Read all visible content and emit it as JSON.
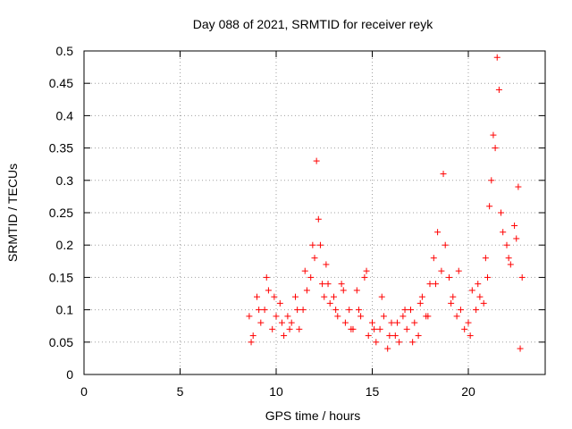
{
  "chart_data": {
    "type": "scatter",
    "title": "Day 088 of 2021, SRMTID for receiver reyk",
    "xlabel": "GPS time / hours",
    "ylabel": "SRMTID / TECUs",
    "xlim": [
      0,
      24
    ],
    "ylim": [
      0,
      0.5
    ],
    "x_ticks": [
      0,
      5,
      10,
      15,
      20
    ],
    "y_ticks": [
      0,
      0.05,
      0.1,
      0.15,
      0.2,
      0.25,
      0.3,
      0.35,
      0.4,
      0.45,
      0.5
    ],
    "grid": true,
    "marker": "+",
    "color": "#ff0000",
    "series": [
      {
        "x": [
          8.6,
          8.8,
          9.0,
          9.2,
          9.4,
          9.6,
          9.8,
          10.0,
          10.2,
          10.4,
          10.6,
          10.8,
          11.0,
          11.2,
          11.4,
          11.6,
          11.8,
          12.0,
          12.1,
          12.2,
          12.3,
          12.4,
          12.5,
          12.6,
          12.8,
          13.0,
          13.2,
          13.4,
          13.6,
          13.8,
          14.0,
          14.2,
          14.4,
          14.6,
          14.8,
          15.0,
          15.2,
          15.4,
          15.6,
          15.8,
          16.0,
          16.2,
          16.4,
          16.6,
          16.8,
          17.0,
          17.2,
          17.4,
          17.6,
          17.8,
          18.0,
          18.2,
          18.4,
          18.6,
          18.7,
          18.8,
          19.0,
          19.2,
          19.4,
          19.6,
          19.8,
          20.0,
          20.2,
          20.4,
          20.6,
          20.8,
          21.0,
          21.1,
          21.2,
          21.3,
          21.4,
          21.5,
          21.6,
          21.8,
          22.0,
          22.2,
          22.4,
          22.6,
          22.8,
          8.7,
          9.1,
          9.5,
          9.9,
          10.3,
          10.7,
          11.1,
          11.5,
          11.9,
          12.7,
          13.1,
          13.5,
          13.9,
          14.3,
          14.7,
          15.1,
          15.5,
          15.9,
          16.3,
          16.7,
          17.1,
          17.5,
          17.9,
          18.3,
          19.1,
          19.5,
          20.1,
          20.5,
          20.9,
          21.7,
          22.1,
          22.5,
          22.7
        ],
        "y": [
          0.09,
          0.06,
          0.12,
          0.08,
          0.1,
          0.13,
          0.07,
          0.09,
          0.11,
          0.06,
          0.09,
          0.08,
          0.12,
          0.07,
          0.1,
          0.13,
          0.15,
          0.18,
          0.33,
          0.24,
          0.2,
          0.14,
          0.12,
          0.17,
          0.11,
          0.12,
          0.09,
          0.14,
          0.08,
          0.1,
          0.07,
          0.13,
          0.09,
          0.15,
          0.06,
          0.08,
          0.05,
          0.07,
          0.09,
          0.04,
          0.08,
          0.06,
          0.05,
          0.09,
          0.07,
          0.1,
          0.08,
          0.06,
          0.12,
          0.09,
          0.14,
          0.18,
          0.22,
          0.16,
          0.31,
          0.2,
          0.15,
          0.12,
          0.09,
          0.1,
          0.07,
          0.08,
          0.13,
          0.1,
          0.12,
          0.11,
          0.15,
          0.26,
          0.3,
          0.37,
          0.35,
          0.49,
          0.44,
          0.22,
          0.2,
          0.17,
          0.23,
          0.29,
          0.15,
          0.05,
          0.1,
          0.15,
          0.12,
          0.08,
          0.07,
          0.1,
          0.16,
          0.2,
          0.14,
          0.1,
          0.13,
          0.07,
          0.1,
          0.16,
          0.07,
          0.12,
          0.06,
          0.08,
          0.1,
          0.05,
          0.11,
          0.09,
          0.14,
          0.11,
          0.16,
          0.06,
          0.14,
          0.18,
          0.25,
          0.18,
          0.21,
          0.04
        ]
      }
    ]
  }
}
